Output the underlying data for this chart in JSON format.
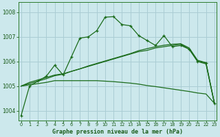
{
  "title": "Graphe pression niveau de la mer (hPa)",
  "bg_color": "#cce8ec",
  "grid_color": "#aacdd4",
  "line_color": "#1a6b1a",
  "ylim": [
    1003.6,
    1008.4
  ],
  "yticks": [
    1004,
    1005,
    1006,
    1007,
    1008
  ],
  "xlim": [
    -0.3,
    23.3
  ],
  "xticks": [
    0,
    1,
    2,
    3,
    4,
    5,
    6,
    7,
    8,
    9,
    10,
    11,
    12,
    13,
    14,
    15,
    16,
    17,
    18,
    19,
    20,
    21,
    22,
    23
  ],
  "series": {
    "main": [
      1003.8,
      1005.0,
      1005.2,
      1005.4,
      1005.85,
      1005.45,
      1006.2,
      1006.95,
      1007.0,
      1007.25,
      1007.8,
      1007.82,
      1007.5,
      1007.45,
      1007.05,
      1006.85,
      1006.65,
      1007.05,
      1006.6,
      1006.65,
      1006.5,
      1006.0,
      1005.95,
      1004.3
    ],
    "line2": [
      1005.0,
      1005.15,
      1005.25,
      1005.35,
      1005.45,
      1005.5,
      1005.6,
      1005.7,
      1005.8,
      1005.9,
      1006.0,
      1006.1,
      1006.2,
      1006.3,
      1006.4,
      1006.45,
      1006.55,
      1006.6,
      1006.65,
      1006.7,
      1006.5,
      1006.0,
      1005.9,
      1004.3
    ],
    "line3": [
      1005.0,
      1005.1,
      1005.2,
      1005.3,
      1005.42,
      1005.48,
      1005.6,
      1005.7,
      1005.82,
      1005.92,
      1006.02,
      1006.12,
      1006.22,
      1006.32,
      1006.44,
      1006.52,
      1006.6,
      1006.66,
      1006.7,
      1006.72,
      1006.55,
      1006.05,
      1005.95,
      1004.3
    ],
    "line4": [
      1005.0,
      1005.05,
      1005.1,
      1005.15,
      1005.22,
      1005.22,
      1005.22,
      1005.22,
      1005.22,
      1005.22,
      1005.2,
      1005.18,
      1005.15,
      1005.12,
      1005.08,
      1005.02,
      1004.98,
      1004.93,
      1004.88,
      1004.83,
      1004.78,
      1004.72,
      1004.68,
      1004.3
    ]
  }
}
